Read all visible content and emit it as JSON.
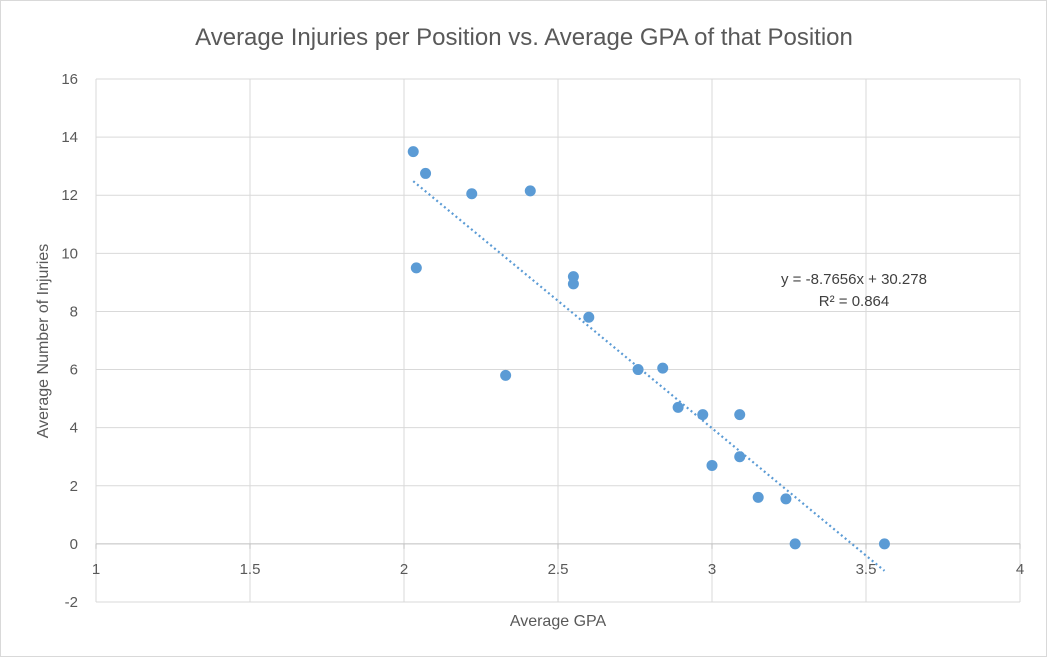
{
  "chart_data": {
    "type": "scatter",
    "title": "Average Injuries per Position vs. Average GPA of that Position",
    "xlabel": "Average GPA",
    "ylabel": "Average Number of Injuries",
    "xlim": [
      1,
      4
    ],
    "ylim": [
      -2,
      16
    ],
    "x_ticks": [
      1,
      1.5,
      2,
      2.5,
      3,
      3.5,
      4
    ],
    "x_tick_labels": [
      "1",
      "1.5",
      "2",
      "2.5",
      "3",
      "3.5",
      "4"
    ],
    "y_ticks": [
      -2,
      0,
      2,
      4,
      6,
      8,
      10,
      12,
      14,
      16
    ],
    "y_tick_labels": [
      "-2",
      "0",
      "2",
      "4",
      "6",
      "8",
      "10",
      "12",
      "14",
      "16"
    ],
    "grid": true,
    "marker_color": "#5b9bd5",
    "points": [
      {
        "x": 2.03,
        "y": 13.5
      },
      {
        "x": 2.07,
        "y": 12.75
      },
      {
        "x": 2.22,
        "y": 12.05
      },
      {
        "x": 2.41,
        "y": 12.15
      },
      {
        "x": 2.04,
        "y": 9.5
      },
      {
        "x": 2.55,
        "y": 9.2
      },
      {
        "x": 2.55,
        "y": 8.95
      },
      {
        "x": 2.6,
        "y": 7.8
      },
      {
        "x": 2.33,
        "y": 5.8
      },
      {
        "x": 2.76,
        "y": 6.0
      },
      {
        "x": 2.84,
        "y": 6.05
      },
      {
        "x": 2.89,
        "y": 4.7
      },
      {
        "x": 2.97,
        "y": 4.45
      },
      {
        "x": 3.09,
        "y": 4.45
      },
      {
        "x": 3.0,
        "y": 2.7
      },
      {
        "x": 3.09,
        "y": 3.0
      },
      {
        "x": 3.15,
        "y": 1.6
      },
      {
        "x": 3.24,
        "y": 1.55
      },
      {
        "x": 3.27,
        "y": 0.0
      },
      {
        "x": 3.56,
        "y": 0.0
      }
    ],
    "trendline": {
      "type": "linear",
      "slope": -8.7656,
      "intercept": 30.278,
      "x_range": [
        2.03,
        3.56
      ],
      "style": "dotted",
      "equation_text": "y = -8.7656x + 30.278",
      "r2_text": "R² = 0.864"
    }
  }
}
